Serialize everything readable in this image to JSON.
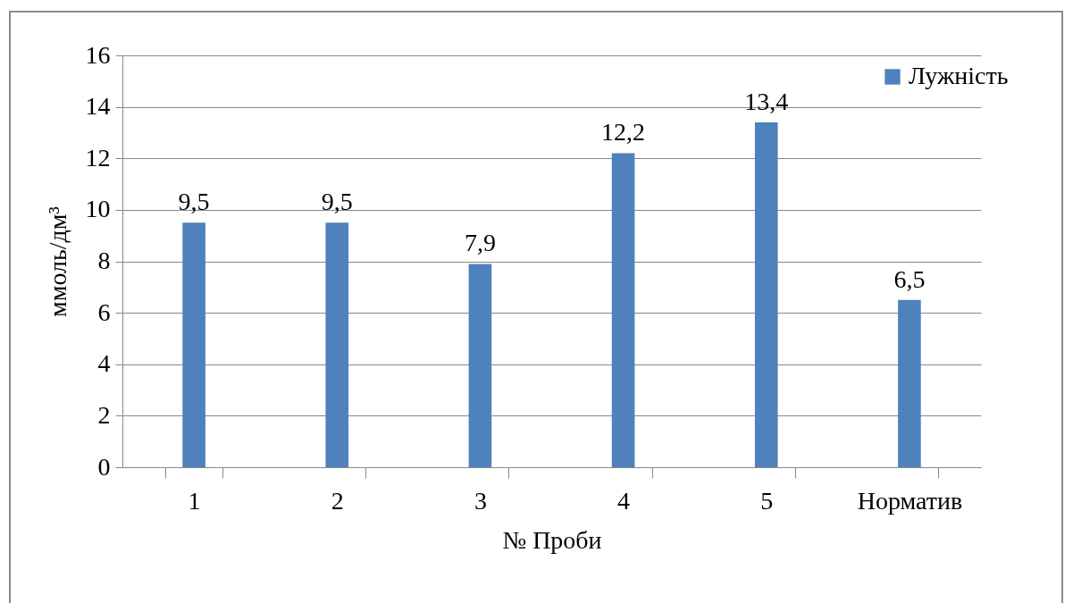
{
  "chart_data": {
    "type": "bar",
    "categories": [
      "1",
      "2",
      "3",
      "4",
      "5",
      "Норматив"
    ],
    "series": [
      {
        "name": "Лужність",
        "color": "#4f81bd",
        "values": [
          9.5,
          9.5,
          7.9,
          12.2,
          13.4,
          6.5
        ],
        "value_labels": [
          "9,5",
          "9,5",
          "7,9",
          "12,2",
          "13,4",
          "6,5"
        ]
      }
    ],
    "xlabel": "№ Проби",
    "ylabel": "ммоль/дм³",
    "ylim": [
      0,
      16
    ],
    "yticks": [
      0,
      2,
      4,
      6,
      8,
      10,
      12,
      14,
      16
    ],
    "grid": "y",
    "legend": "top right"
  }
}
